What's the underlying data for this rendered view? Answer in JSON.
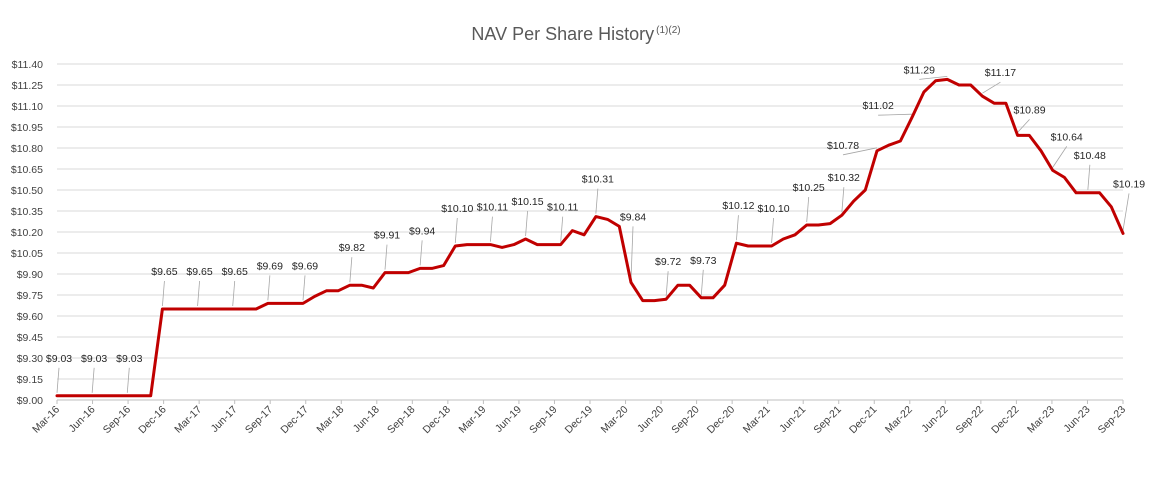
{
  "chart_data": {
    "type": "line",
    "title": "NAV Per Share History",
    "title_superscript": "(1)(2)",
    "xlabel": "",
    "ylabel": "",
    "ylim": [
      9.0,
      11.4
    ],
    "y_ticks": [
      "$9.00",
      "$9.15",
      "$9.30",
      "$9.45",
      "$9.60",
      "$9.75",
      "$9.90",
      "$10.05",
      "$10.20",
      "$10.35",
      "$10.50",
      "$10.65",
      "$10.80",
      "$10.95",
      "$11.10",
      "$11.25",
      "$11.40"
    ],
    "x_tick_labels": [
      "Mar-16",
      "Jun-16",
      "Sep-16",
      "Dec-16",
      "Mar-17",
      "Jun-17",
      "Sep-17",
      "Dec-17",
      "Mar-18",
      "Jun-18",
      "Sep-18",
      "Dec-18",
      "Mar-19",
      "Jun-19",
      "Sep-19",
      "Dec-19",
      "Mar-20",
      "Jun-20",
      "Sep-20",
      "Dec-20",
      "Mar-21",
      "Jun-21",
      "Sep-21",
      "Dec-21",
      "Mar-22",
      "Jun-22",
      "Sep-22",
      "Dec-22",
      "Mar-23",
      "Jun-23",
      "Sep-23"
    ],
    "grid": true,
    "line_color": "#c00000",
    "series": [
      {
        "values": [
          9.03,
          9.03,
          9.03,
          9.03,
          9.03,
          9.03,
          9.03,
          9.03,
          9.03,
          9.65,
          9.65,
          9.65,
          9.65,
          9.65,
          9.65,
          9.65,
          9.65,
          9.65,
          9.69,
          9.69,
          9.69,
          9.69,
          9.74,
          9.78,
          9.78,
          9.82,
          9.82,
          9.8,
          9.91,
          9.91,
          9.91,
          9.94,
          9.94,
          9.96,
          10.1,
          10.11,
          10.11,
          10.11,
          10.09,
          10.11,
          10.15,
          10.11,
          10.11,
          10.11,
          10.21,
          10.18,
          10.31,
          10.29,
          10.24,
          9.84,
          9.71,
          9.71,
          9.72,
          9.82,
          9.82,
          9.73,
          9.73,
          9.82,
          10.12,
          10.1,
          10.1,
          10.1,
          10.15,
          10.18,
          10.25,
          10.25,
          10.26,
          10.32,
          10.42,
          10.5,
          10.78,
          10.82,
          10.85,
          11.02,
          11.2,
          11.28,
          11.29,
          11.25,
          11.25,
          11.17,
          11.12,
          11.12,
          10.89,
          10.89,
          10.78,
          10.64,
          10.59,
          10.48,
          10.48,
          10.48,
          10.38,
          10.19
        ]
      }
    ],
    "data_labels": [
      {
        "index": 0,
        "text": "$9.03"
      },
      {
        "index": 3,
        "text": "$9.03"
      },
      {
        "index": 6,
        "text": "$9.03"
      },
      {
        "index": 9,
        "text": "$9.65"
      },
      {
        "index": 12,
        "text": "$9.65"
      },
      {
        "index": 15,
        "text": "$9.65"
      },
      {
        "index": 18,
        "text": "$9.69"
      },
      {
        "index": 21,
        "text": "$9.69"
      },
      {
        "index": 25,
        "text": "$9.82"
      },
      {
        "index": 28,
        "text": "$9.91"
      },
      {
        "index": 31,
        "text": "$9.94"
      },
      {
        "index": 34,
        "text": "$10.10"
      },
      {
        "index": 37,
        "text": "$10.11"
      },
      {
        "index": 40,
        "text": "$10.15"
      },
      {
        "index": 43,
        "text": "$10.11"
      },
      {
        "index": 46,
        "text": "$10.31"
      },
      {
        "index": 49,
        "text": "$9.84"
      },
      {
        "index": 52,
        "text": "$9.72"
      },
      {
        "index": 55,
        "text": "$9.73"
      },
      {
        "index": 58,
        "text": "$10.12"
      },
      {
        "index": 61,
        "text": "$10.10"
      },
      {
        "index": 64,
        "text": "$10.25"
      },
      {
        "index": 67,
        "text": "$10.32"
      },
      {
        "index": 70,
        "text": "$10.78"
      },
      {
        "index": 73,
        "text": "$11.02"
      },
      {
        "index": 76,
        "text": "$11.29"
      },
      {
        "index": 79,
        "text": "$11.17"
      },
      {
        "index": 82,
        "text": "$10.89"
      },
      {
        "index": 85,
        "text": "$10.64"
      },
      {
        "index": 88,
        "text": "$10.48"
      },
      {
        "index": 91,
        "text": "$10.19"
      }
    ]
  }
}
